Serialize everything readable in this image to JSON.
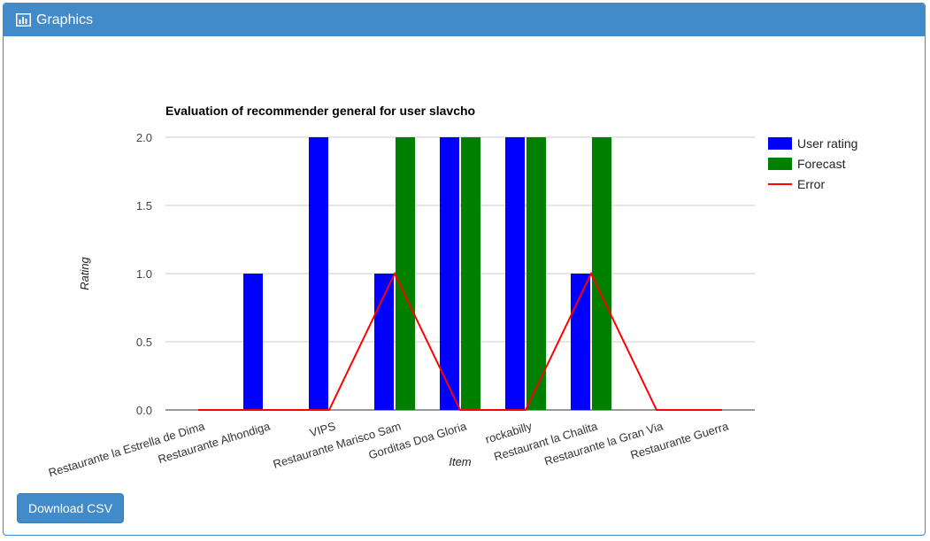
{
  "panel": {
    "title": "Graphics",
    "icon": "bar-chart-icon",
    "accent_color": "#428bca"
  },
  "download_button": {
    "label": "Download CSV"
  },
  "chart_data": {
    "type": "bar",
    "title": "Evaluation of recommender general for user slavcho",
    "xlabel": "Item",
    "ylabel": "Rating",
    "ylim": [
      0,
      2
    ],
    "yticks": [
      "0.0",
      "0.5",
      "1.0",
      "1.5",
      "2.0"
    ],
    "ytick_values": [
      0,
      0.5,
      1,
      1.5,
      2
    ],
    "categories": [
      "Restaurante la Estrella de Dima",
      "Restaurante Alhondiga",
      "VIPS",
      "Restaurante Marisco Sam",
      "Gorditas Doa Gloria",
      "rockabilly",
      "Restaurant la Chalita",
      "Restaurante la Gran Via",
      "Restaurante Guerra"
    ],
    "series": [
      {
        "name": "User rating",
        "kind": "bar",
        "color": "#0000ff",
        "values": [
          0,
          1,
          2,
          1,
          2,
          2,
          1,
          0,
          0
        ]
      },
      {
        "name": "Forecast",
        "kind": "bar",
        "color": "#008000",
        "values": [
          0,
          0,
          0,
          2,
          2,
          2,
          2,
          0,
          0
        ]
      },
      {
        "name": "Error",
        "kind": "line",
        "color": "#ff0000",
        "values": [
          0,
          0,
          0,
          1,
          0,
          0,
          1,
          0,
          0
        ]
      }
    ],
    "legend_position": "right",
    "grid": true
  }
}
